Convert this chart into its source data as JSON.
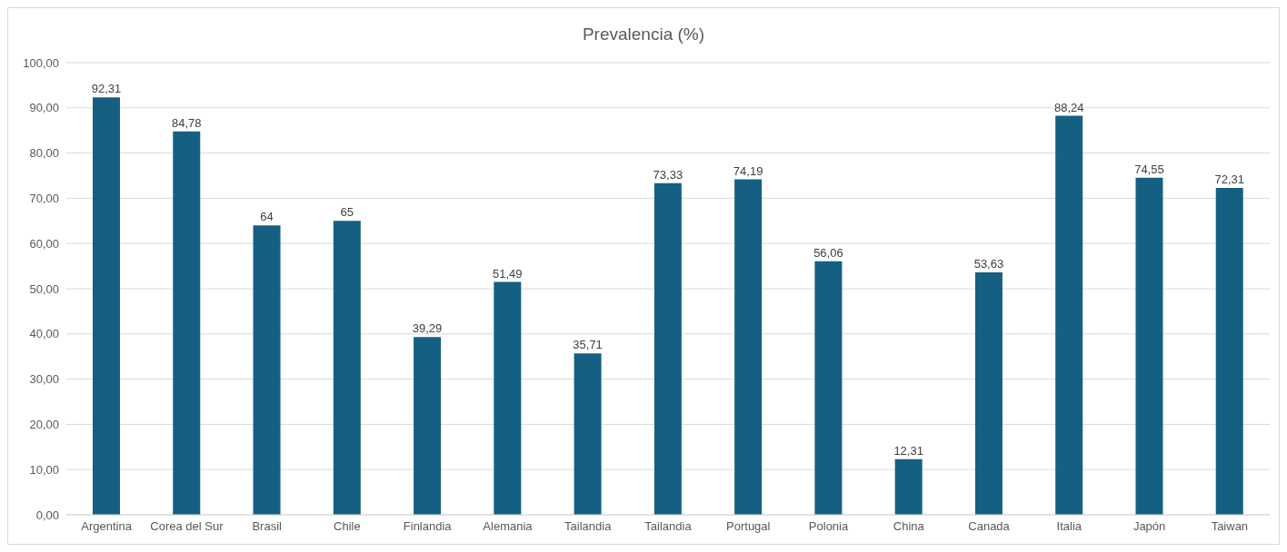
{
  "chart_data": {
    "type": "bar",
    "title": "Prevalencia (%)",
    "categories": [
      "Argentina",
      "Corea del Sur",
      "Brasil",
      "Chile",
      "Finlandia",
      "Alemania",
      "Tailandia",
      "Tailandia",
      "Portugal",
      "Polonia",
      "China",
      "Canada",
      "Italia",
      "Japón",
      "Taiwan"
    ],
    "values": [
      92.31,
      84.78,
      64,
      65,
      39.29,
      51.49,
      35.71,
      73.33,
      74.19,
      56.06,
      12.31,
      53.63,
      88.24,
      74.55,
      72.31
    ],
    "value_labels": [
      "92,31",
      "84,78",
      "64",
      "65",
      "39,29",
      "51,49",
      "35,71",
      "73,33",
      "74,19",
      "56,06",
      "12,31",
      "53,63",
      "88,24",
      "74,55",
      "72,31"
    ],
    "color": "#156082",
    "ylim": [
      0,
      100
    ],
    "yticks": [
      {
        "value": 0,
        "label": "0,00"
      },
      {
        "value": 10,
        "label": "10,00"
      },
      {
        "value": 20,
        "label": "20,00"
      },
      {
        "value": 30,
        "label": "30,00"
      },
      {
        "value": 40,
        "label": "40,00"
      },
      {
        "value": 50,
        "label": "50,00"
      },
      {
        "value": 60,
        "label": "60,00"
      },
      {
        "value": 70,
        "label": "70,00"
      },
      {
        "value": 80,
        "label": "80,00"
      },
      {
        "value": 90,
        "label": "90,00"
      },
      {
        "value": 100,
        "label": "100,00"
      }
    ],
    "grid": "y"
  }
}
